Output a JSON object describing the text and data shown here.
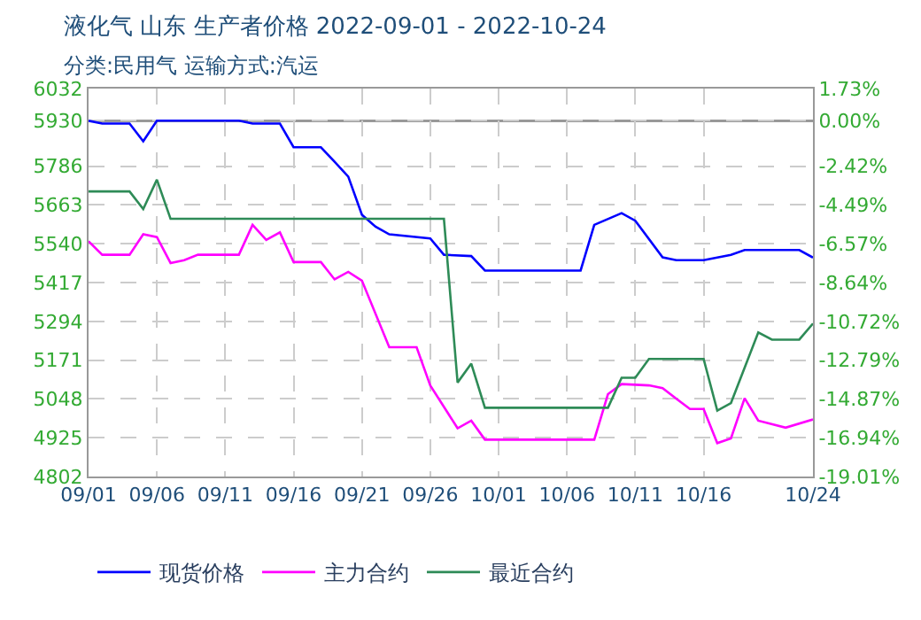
{
  "chart_data": {
    "type": "line",
    "title": "液化气 山东 生产者价格 2022-09-01 - 2022-10-24",
    "subtitle": "分类:民用气 运输方式:汽运",
    "x": [
      "2022-09-01",
      "2022-09-02",
      "2022-09-04",
      "2022-09-05",
      "2022-09-06",
      "2022-09-12",
      "2022-09-13",
      "2022-09-15",
      "2022-09-16",
      "2022-09-18",
      "2022-09-19",
      "2022-09-20",
      "2022-09-21",
      "2022-09-22",
      "2022-09-23",
      "2022-09-26",
      "2022-09-27",
      "2022-09-29",
      "2022-09-30",
      "2022-10-07",
      "2022-10-08",
      "2022-10-10",
      "2022-10-11",
      "2022-10-13",
      "2022-10-14",
      "2022-10-16",
      "2022-10-18",
      "2022-10-19",
      "2022-10-23",
      "2022-10-24"
    ],
    "series": [
      {
        "name": "现货价格",
        "color": "#0000ff",
        "values": [
          5930,
          5921,
          5921,
          5865,
          5930,
          5930,
          5921,
          5921,
          5846,
          5846,
          5800,
          5753,
          5632,
          5594,
          5570,
          5557,
          5505,
          5501,
          5455,
          5455,
          5600,
          5637,
          5613,
          5497,
          5488,
          5488,
          5505,
          5520,
          5520,
          5496
        ]
      },
      {
        "name": "主力合约",
        "color": "#ff00ff",
        "x": [
          "2022-09-01",
          "2022-09-02",
          "2022-09-04",
          "2022-09-05",
          "2022-09-06",
          "2022-09-07",
          "2022-09-08",
          "2022-09-09",
          "2022-09-12",
          "2022-09-13",
          "2022-09-14",
          "2022-09-15",
          "2022-09-16",
          "2022-09-18",
          "2022-09-19",
          "2022-09-20",
          "2022-09-21",
          "2022-09-23",
          "2022-09-25",
          "2022-09-26",
          "2022-09-28",
          "2022-09-29",
          "2022-09-30",
          "2022-10-08",
          "2022-10-09",
          "2022-10-10",
          "2022-10-12",
          "2022-10-13",
          "2022-10-15",
          "2022-10-16",
          "2022-10-17",
          "2022-10-18",
          "2022-10-19",
          "2022-10-20",
          "2022-10-22",
          "2022-10-24"
        ],
        "values": [
          5548,
          5505,
          5505,
          5570,
          5561,
          5479,
          5488,
          5505,
          5505,
          5600,
          5552,
          5576,
          5482,
          5482,
          5427,
          5451,
          5423,
          5212,
          5212,
          5091,
          4955,
          4979,
          4919,
          4919,
          5063,
          5095,
          5091,
          5082,
          5016,
          5016,
          4908,
          4923,
          5050,
          4979,
          4957,
          4983
        ]
      },
      {
        "name": "最近合约",
        "color": "#2e8b57",
        "x": [
          "2022-09-01",
          "2022-09-04",
          "2022-09-05",
          "2022-09-06",
          "2022-09-07",
          "2022-09-27",
          "2022-09-28",
          "2022-09-29",
          "2022-09-30",
          "2022-10-09",
          "2022-10-10",
          "2022-10-11",
          "2022-10-12",
          "2022-10-16",
          "2022-10-17",
          "2022-10-18",
          "2022-10-20",
          "2022-10-21",
          "2022-10-23",
          "2022-10-24"
        ],
        "values": [
          5706,
          5706,
          5650,
          5743,
          5619,
          5619,
          5100,
          5160,
          5020,
          5020,
          5115,
          5115,
          5175,
          5175,
          5011,
          5035,
          5259,
          5236,
          5236,
          5287
        ]
      }
    ],
    "xlim": [
      "2022-09-01",
      "2022-10-24"
    ],
    "xticks": [
      {
        "value": "2022-09-01",
        "label": "09/01"
      },
      {
        "value": "2022-09-06",
        "label": "09/06"
      },
      {
        "value": "2022-09-11",
        "label": "09/11"
      },
      {
        "value": "2022-09-16",
        "label": "09/16"
      },
      {
        "value": "2022-09-21",
        "label": "09/21"
      },
      {
        "value": "2022-09-26",
        "label": "09/26"
      },
      {
        "value": "2022-10-01",
        "label": "10/01"
      },
      {
        "value": "2022-10-06",
        "label": "10/06"
      },
      {
        "value": "2022-10-11",
        "label": "10/11"
      },
      {
        "value": "2022-10-16",
        "label": "10/16"
      },
      {
        "value": "2022-10-24",
        "label": "10/24"
      }
    ],
    "ylim": [
      4802,
      6032
    ],
    "yticks": [
      4802,
      4925,
      5048,
      5171,
      5294,
      5417,
      5540,
      5663,
      5786,
      5930,
      6032
    ],
    "y2lim": [
      -19.01,
      1.73
    ],
    "y2ticks": [
      {
        "value": -19.01,
        "label": "-19.01%"
      },
      {
        "value": -16.94,
        "label": "-16.94%"
      },
      {
        "value": -14.87,
        "label": "-14.87%"
      },
      {
        "value": -12.79,
        "label": "-12.79%"
      },
      {
        "value": -10.72,
        "label": "-10.72%"
      },
      {
        "value": -8.64,
        "label": "-8.64%"
      },
      {
        "value": -6.57,
        "label": "-6.57%"
      },
      {
        "value": -4.49,
        "label": "-4.49%"
      },
      {
        "value": -2.42,
        "label": "-2.42%"
      },
      {
        "value": 0,
        "label": "0.00%"
      },
      {
        "value": 1.73,
        "label": "1.73%"
      }
    ],
    "ref_lines": [
      {
        "axis": "y2",
        "value": 0,
        "color": "#999999"
      }
    ],
    "grid": true,
    "legend": "bottom",
    "line_style": "solid",
    "marker": "none"
  }
}
